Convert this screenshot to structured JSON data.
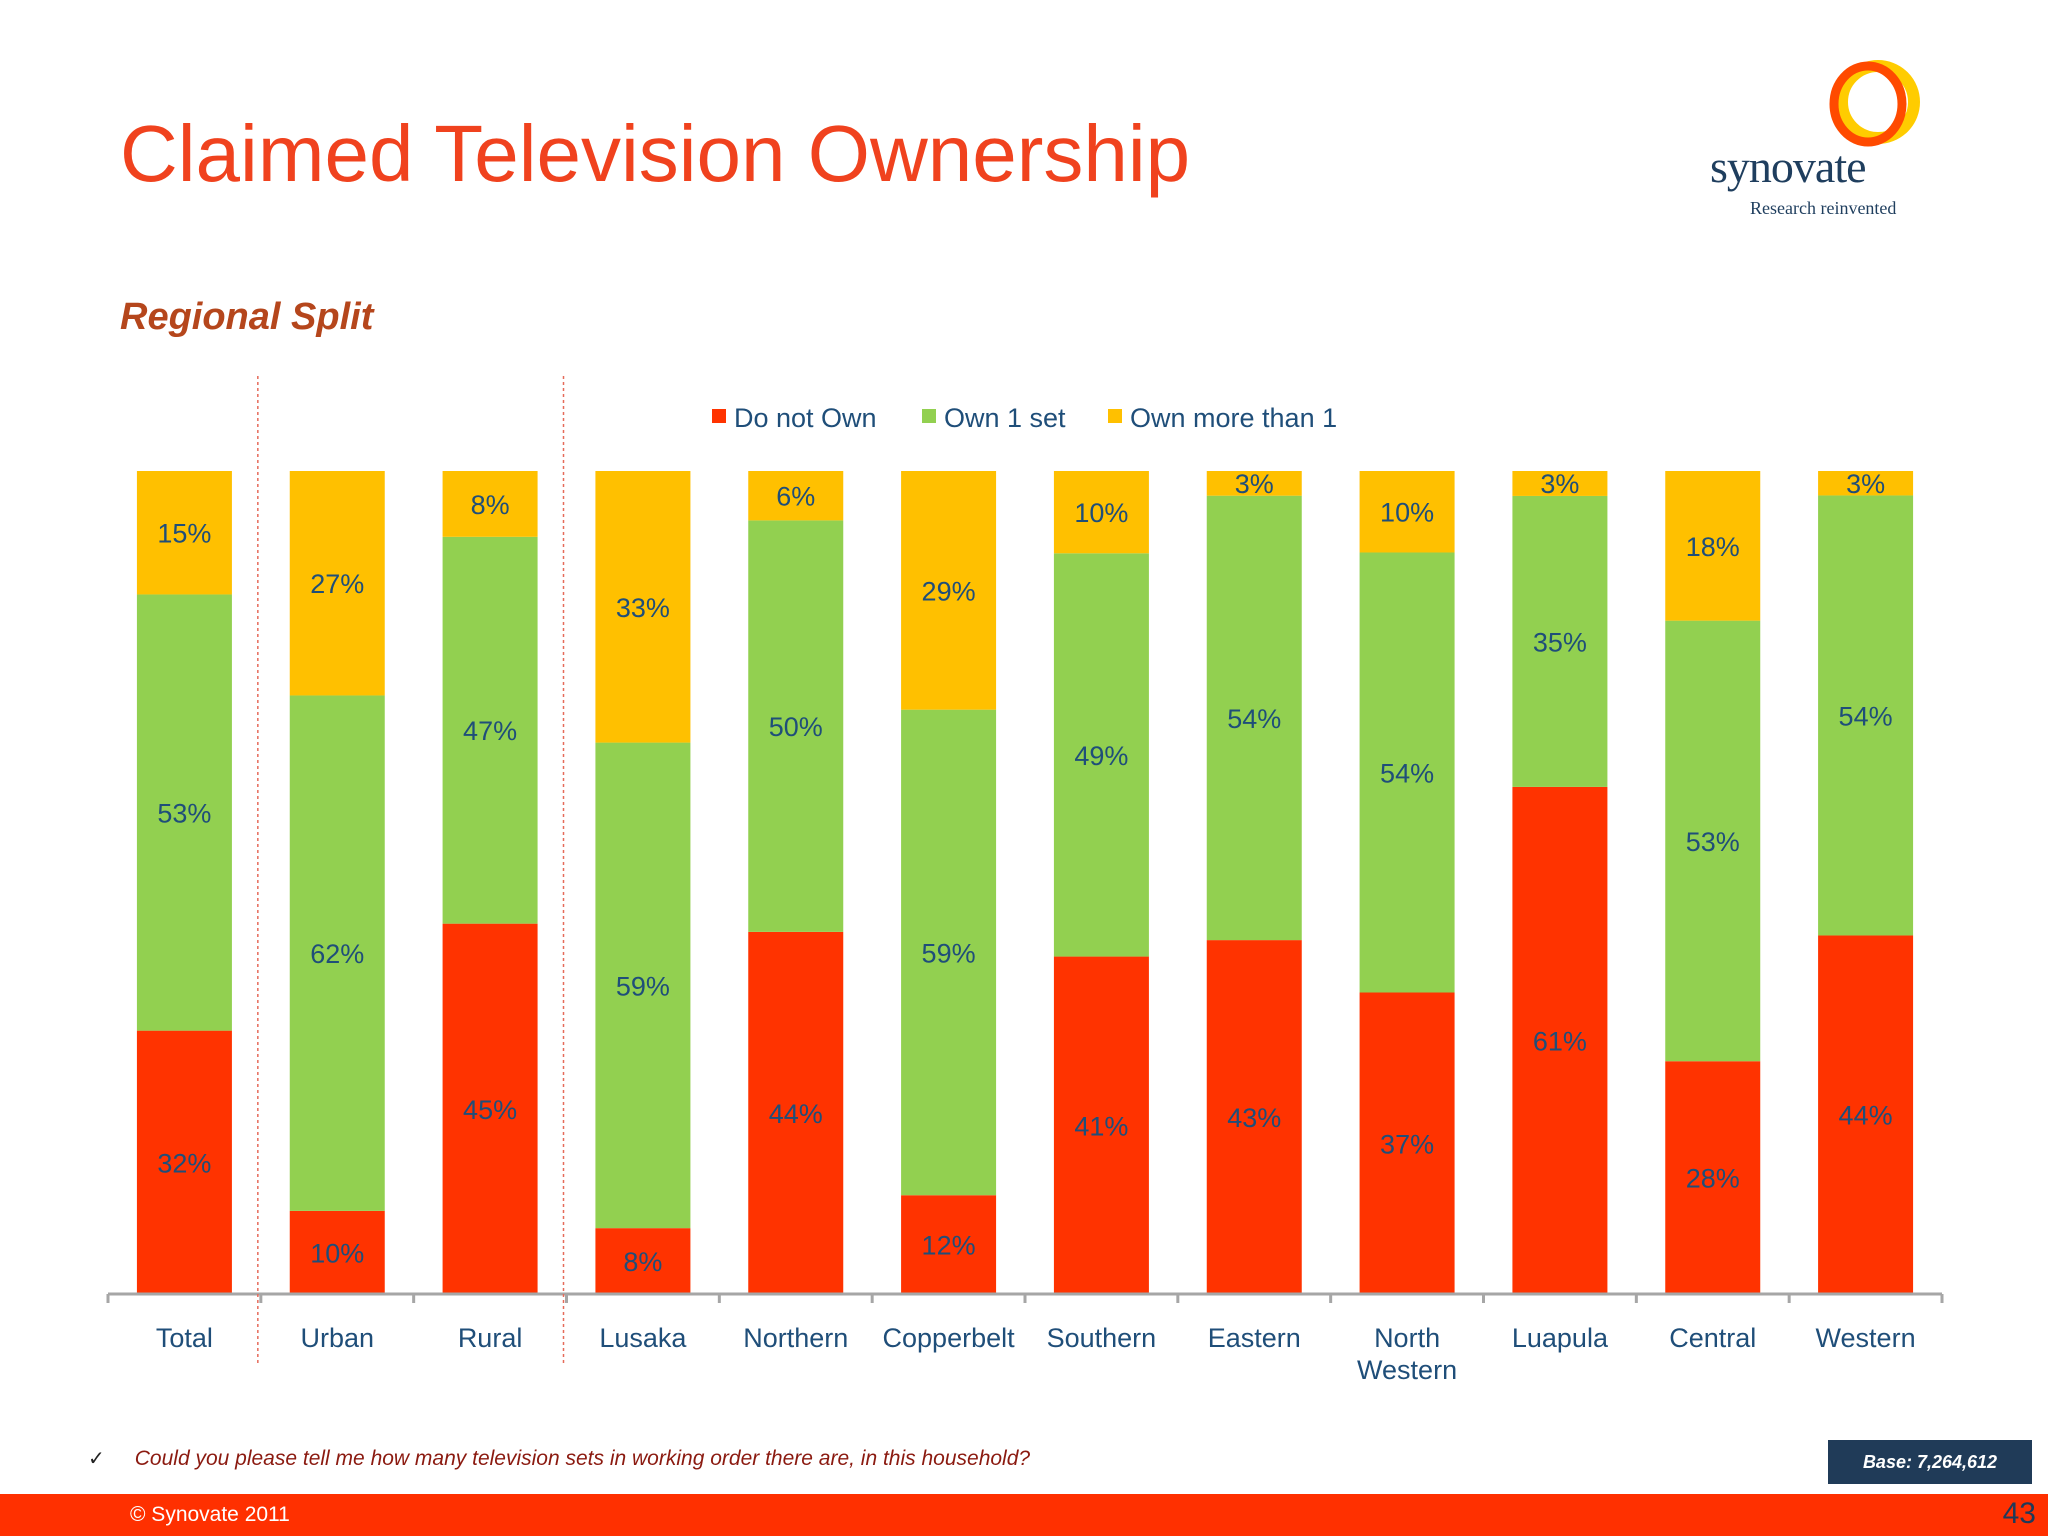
{
  "page": {
    "title": "Claimed Television Ownership",
    "subtitle": "Regional Split",
    "logo_word": "synovate",
    "logo_tagline": "Research reinvented",
    "question": "Could you please tell me how many television sets in working order there are, in this household?",
    "base": "Base: 7,264,612",
    "copyright": "© Synovate 2011",
    "page_number": "43"
  },
  "colors": {
    "title": "#f0421e",
    "do_not_own": "#ff3300",
    "own_1": "#92d050",
    "own_more": "#ffc000",
    "label": "#1f4e79",
    "footer_bar": "#ff3000",
    "base_box": "#203b58"
  },
  "chart_data": {
    "type": "bar",
    "stacked": true,
    "categories": [
      "Total",
      "Urban",
      "Rural",
      "Lusaka",
      "Northern",
      "Copperbelt",
      "Southern",
      "Eastern",
      "North Western",
      "Luapula",
      "Central",
      "Western"
    ],
    "series": [
      {
        "name": "Do not Own",
        "color": "#ff3300",
        "values": [
          32,
          10,
          45,
          8,
          44,
          12,
          41,
          43,
          37,
          61,
          28,
          44
        ]
      },
      {
        "name": "Own 1 set",
        "color": "#92d050",
        "values": [
          53,
          62,
          47,
          59,
          50,
          59,
          49,
          54,
          54,
          35,
          53,
          54
        ]
      },
      {
        "name": "Own more than 1",
        "color": "#ffc000",
        "values": [
          15,
          27,
          8,
          33,
          6,
          29,
          10,
          3,
          10,
          3,
          18,
          3
        ]
      }
    ],
    "value_suffix": "%",
    "legend_position": "top",
    "separators_after": [
      "Total",
      "Rural"
    ],
    "ylim": [
      0,
      100
    ],
    "grid": false
  }
}
